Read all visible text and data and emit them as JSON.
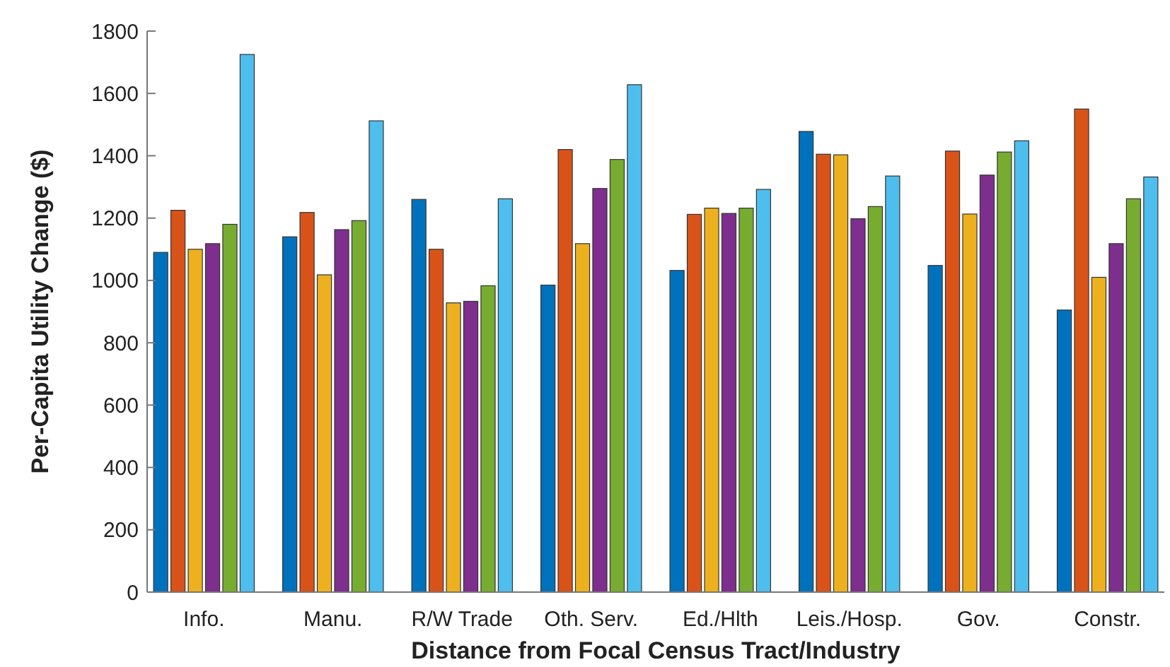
{
  "chart_data": {
    "type": "bar",
    "xlabel": "Distance from Focal Census Tract/Industry",
    "ylabel": "Per-Capita Utility Change ($)",
    "categories": [
      "Info.",
      "Manu.",
      "R/W Trade",
      "Oth. Serv.",
      "Ed./Hlth",
      "Leis./Hosp.",
      "Gov.",
      "Constr."
    ],
    "series": [
      {
        "color": "#0072bd",
        "values": [
          1090,
          1140,
          1260,
          985,
          1032,
          1478,
          1048,
          905
        ]
      },
      {
        "color": "#d95319",
        "values": [
          1225,
          1218,
          1100,
          1420,
          1212,
          1405,
          1415,
          1550
        ]
      },
      {
        "color": "#edb120",
        "values": [
          1100,
          1018,
          928,
          1118,
          1232,
          1403,
          1213,
          1010
        ]
      },
      {
        "color": "#7e2f8e",
        "values": [
          1118,
          1163,
          933,
          1295,
          1215,
          1198,
          1338,
          1118
        ]
      },
      {
        "color": "#77ac30",
        "values": [
          1180,
          1192,
          983,
          1388,
          1232,
          1237,
          1412,
          1262
        ]
      },
      {
        "color": "#4dbeee",
        "values": [
          1725,
          1512,
          1262,
          1628,
          1292,
          1335,
          1448,
          1332
        ]
      }
    ],
    "ylim": [
      0,
      1800
    ],
    "yticks": [
      0,
      200,
      400,
      600,
      800,
      1000,
      1200,
      1400,
      1600,
      1800
    ],
    "grid": false
  }
}
